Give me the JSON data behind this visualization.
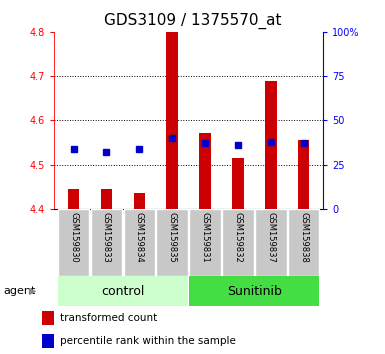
{
  "title": "GDS3109 / 1375570_at",
  "samples": [
    "GSM159830",
    "GSM159833",
    "GSM159834",
    "GSM159835",
    "GSM159831",
    "GSM159832",
    "GSM159837",
    "GSM159838"
  ],
  "red_values": [
    4.445,
    4.445,
    4.435,
    4.8,
    4.572,
    4.515,
    4.69,
    4.555
  ],
  "blue_percentiles": [
    34,
    32,
    34,
    40,
    37,
    36,
    38,
    37
  ],
  "y_min": 4.4,
  "y_max": 4.8,
  "y_ticks": [
    4.4,
    4.5,
    4.6,
    4.7,
    4.8
  ],
  "right_y_ticks": [
    0,
    25,
    50,
    75,
    100
  ],
  "right_y_labels": [
    "0",
    "25",
    "50",
    "75",
    "100%"
  ],
  "bar_color": "#cc0000",
  "dot_color": "#0000cc",
  "control_bg_light": "#ccffcc",
  "sunitinib_bg_dark": "#44dd44",
  "label_bg": "#c8c8c8",
  "title_fontsize": 11,
  "tick_fontsize": 7,
  "group_label_fontsize": 9,
  "legend_fontsize": 7.5,
  "bar_width": 0.35,
  "group_info": [
    {
      "name": "control",
      "start": 0,
      "end": 3
    },
    {
      "name": "Sunitinib",
      "start": 4,
      "end": 7
    }
  ]
}
